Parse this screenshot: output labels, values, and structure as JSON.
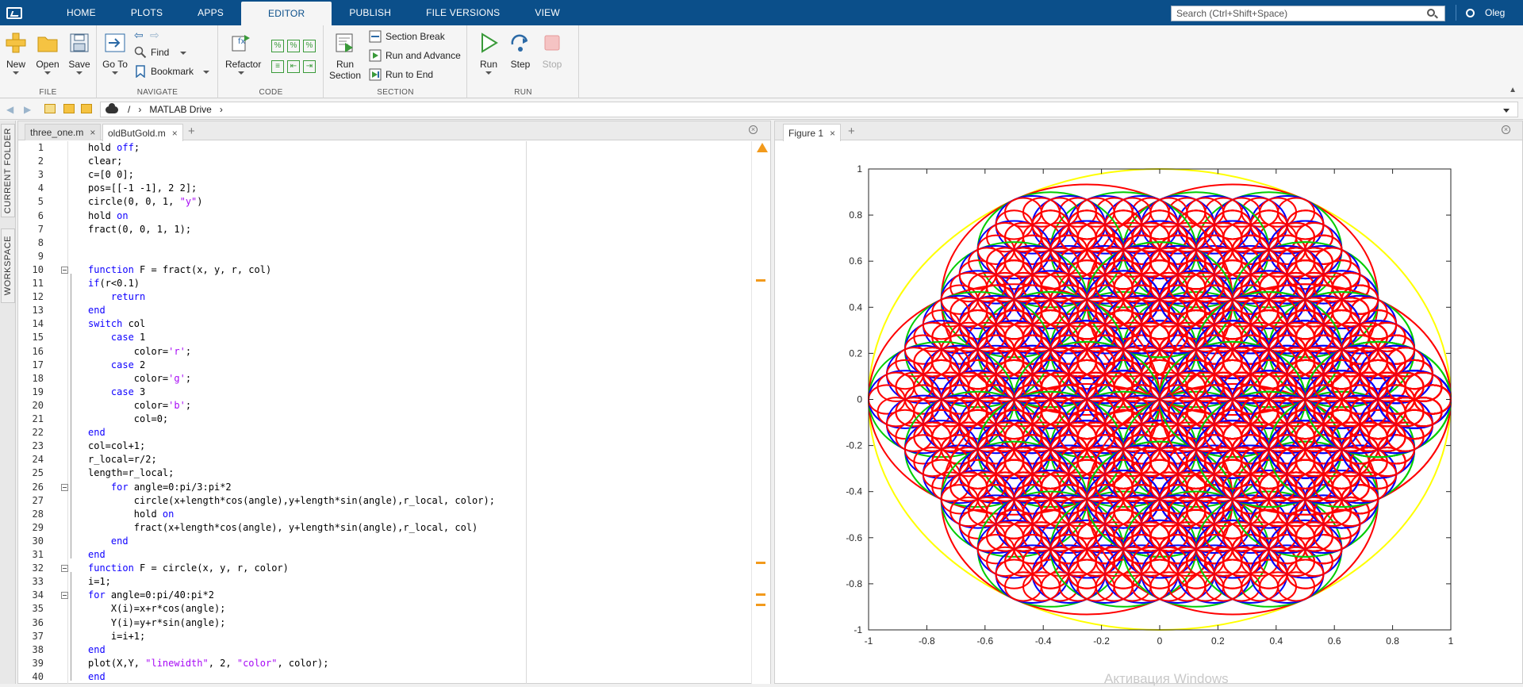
{
  "menu": {
    "tabs": [
      "HOME",
      "PLOTS",
      "APPS",
      "EDITOR",
      "PUBLISH",
      "FILE VERSIONS",
      "VIEW"
    ],
    "active_tab": "EDITOR",
    "search_placeholder": "Search (Ctrl+Shift+Space)",
    "user": "Oleg"
  },
  "ribbon": {
    "file": {
      "label": "FILE",
      "new": "New",
      "open": "Open",
      "save": "Save"
    },
    "navigate": {
      "label": "NAVIGATE",
      "goto": "Go To",
      "find": "Find",
      "bookmark": "Bookmark"
    },
    "code": {
      "label": "CODE",
      "refactor": "Refactor"
    },
    "section": {
      "label": "SECTION",
      "run_section": "Run Section",
      "section_break": "Section Break",
      "run_and_advance": "Run and Advance",
      "run_to_end": "Run to End"
    },
    "run": {
      "label": "RUN",
      "run": "Run",
      "step": "Step",
      "stop": "Stop"
    }
  },
  "address": {
    "root": "/",
    "sep": "›",
    "folder": "MATLAB Drive"
  },
  "sidetabs": [
    "CURRENT FOLDER",
    "WORKSPACE"
  ],
  "editor": {
    "tabs": [
      {
        "name": "three_one.m"
      },
      {
        "name": "oldButGold.m"
      }
    ],
    "active_tab": "oldButGold.m",
    "lines": [
      [
        [
          "",
          "hold "
        ],
        [
          "kw",
          "off"
        ],
        [
          "",
          ";"
        ]
      ],
      [
        [
          "",
          "clear;"
        ]
      ],
      [
        [
          "",
          "c=[0 0];"
        ]
      ],
      [
        [
          "",
          "pos=[[-1 -1], 2 2];"
        ]
      ],
      [
        [
          "",
          "circle(0, 0, 1, "
        ],
        [
          "str",
          "\"y\""
        ],
        [
          "",
          ")"
        ]
      ],
      [
        [
          "",
          "hold "
        ],
        [
          "kw",
          "on"
        ]
      ],
      [
        [
          "",
          "fract(0, 0, 1, 1);"
        ]
      ],
      [],
      [],
      [
        [
          "kw",
          "function"
        ],
        [
          "",
          " F = fract(x, y, r, col)"
        ]
      ],
      [
        [
          "kw",
          "if"
        ],
        [
          "",
          "(r<0.1)"
        ]
      ],
      [
        [
          "",
          "    "
        ],
        [
          "kw",
          "return"
        ]
      ],
      [
        [
          "kw",
          "end"
        ]
      ],
      [
        [
          "kw",
          "switch"
        ],
        [
          "",
          " col"
        ]
      ],
      [
        [
          "",
          "    "
        ],
        [
          "kw",
          "case"
        ],
        [
          "",
          " 1"
        ]
      ],
      [
        [
          "",
          "        color="
        ],
        [
          "str",
          "'r'"
        ],
        [
          "",
          ";"
        ]
      ],
      [
        [
          "",
          "    "
        ],
        [
          "kw",
          "case"
        ],
        [
          "",
          " 2"
        ]
      ],
      [
        [
          "",
          "        color="
        ],
        [
          "str",
          "'g'"
        ],
        [
          "",
          ";"
        ]
      ],
      [
        [
          "",
          "    "
        ],
        [
          "kw",
          "case"
        ],
        [
          "",
          " 3"
        ]
      ],
      [
        [
          "",
          "        color="
        ],
        [
          "str",
          "'b'"
        ],
        [
          "",
          ";"
        ]
      ],
      [
        [
          "",
          "        col=0;"
        ]
      ],
      [
        [
          "kw",
          "end"
        ]
      ],
      [
        [
          "",
          "col=col+1;"
        ]
      ],
      [
        [
          "",
          "r_local=r/2;"
        ]
      ],
      [
        [
          "",
          "length=r_local;"
        ]
      ],
      [
        [
          "",
          "    "
        ],
        [
          "kw",
          "for"
        ],
        [
          "",
          " angle=0:pi/3:pi*2"
        ]
      ],
      [
        [
          "",
          "        circle(x+length*cos(angle),y+length*sin(angle),r_local, color);"
        ]
      ],
      [
        [
          "",
          "        hold "
        ],
        [
          "kw",
          "on"
        ]
      ],
      [
        [
          "",
          "        fract(x+length*cos(angle), y+length*sin(angle),r_local, col)"
        ]
      ],
      [
        [
          "",
          "    "
        ],
        [
          "kw",
          "end"
        ]
      ],
      [
        [
          "kw",
          "end"
        ]
      ],
      [
        [
          "kw",
          "function"
        ],
        [
          "",
          " F = circle(x, y, r, color)"
        ]
      ],
      [
        [
          "",
          "i=1;"
        ]
      ],
      [
        [
          "kw",
          "for"
        ],
        [
          "",
          " angle=0:pi/40:pi*2"
        ]
      ],
      [
        [
          "",
          "    X(i)=x+r*cos(angle);"
        ]
      ],
      [
        [
          "",
          "    Y(i)=y+r*sin(angle);"
        ]
      ],
      [
        [
          "",
          "    i=i+1;"
        ]
      ],
      [
        [
          "kw",
          "end"
        ]
      ],
      [
        [
          "",
          "plot(X,Y, "
        ],
        [
          "str",
          "\"linewidth\""
        ],
        [
          "",
          ", 2, "
        ],
        [
          "str",
          "\"color\""
        ],
        [
          "",
          ", color);"
        ]
      ],
      [
        [
          "kw",
          "end"
        ]
      ]
    ],
    "fold_lines": [
      10,
      26,
      32,
      34
    ]
  },
  "figure": {
    "tab": "Figure 1",
    "watermark": "Активация Windows"
  },
  "chart_data": {
    "type": "line",
    "title": "",
    "xlabel": "",
    "ylabel": "",
    "xlim": [
      -1,
      1
    ],
    "ylim": [
      -1,
      1
    ],
    "x_ticks": [
      "-1",
      "-0.8",
      "-0.6",
      "-0.4",
      "-0.2",
      "0",
      "0.2",
      "0.4",
      "0.6",
      "0.8",
      "1"
    ],
    "y_ticks": [
      "1",
      "0.8",
      "0.6",
      "0.4",
      "0.2",
      "0",
      "-0.2",
      "-0.4",
      "-0.6",
      "-0.8",
      "-1"
    ],
    "grid": false,
    "description_of_data": "recursive circles from fract(0,0,1,1): level 0 radius 1 yellow; level 1 radius 0.5 red; level 2 radius 0.25 green; level 3 radius 0.125 blue; level 4 radius 0.0625 red",
    "series": [
      {
        "level": 0,
        "radius": 1,
        "color": "#ffff00"
      },
      {
        "level": 1,
        "radius": 0.5,
        "color": "#ff0000"
      },
      {
        "level": 2,
        "radius": 0.25,
        "color": "#00cc00"
      },
      {
        "level": 3,
        "radius": 0.125,
        "color": "#0000ff"
      },
      {
        "level": 4,
        "radius": 0.0625,
        "color": "#ff0000"
      }
    ]
  }
}
